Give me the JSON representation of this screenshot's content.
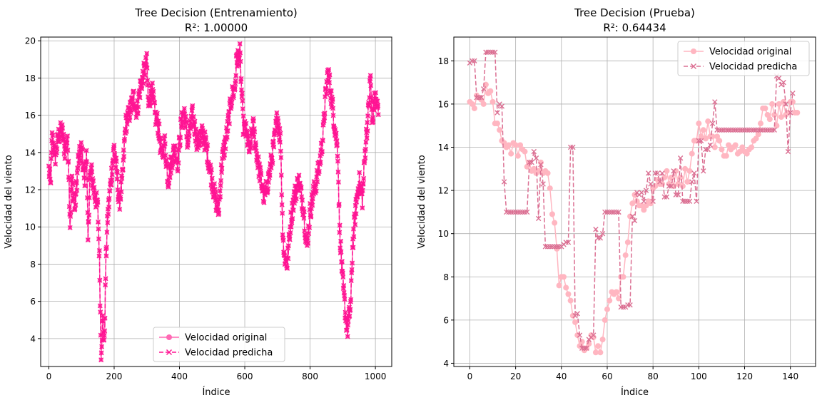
{
  "chart_data": [
    {
      "type": "line",
      "title": "Tree Decision (Entrenamiento)",
      "subtitle": "R²: 1.00000",
      "xlabel": "Índice",
      "ylabel": "Velocidad del viento",
      "xlim": [
        -25,
        1050
      ],
      "ylim": [
        2.5,
        20.2
      ],
      "xticks": [
        0,
        200,
        400,
        600,
        800,
        1000
      ],
      "yticks": [
        4,
        6,
        8,
        10,
        12,
        14,
        16,
        18,
        20
      ],
      "grid": true,
      "legend_position": "lower-center",
      "n_points": 1010,
      "series": [
        {
          "name": "Velocidad original",
          "color": "#ff69b4",
          "marker": "circle",
          "linestyle": "solid"
        },
        {
          "name": "Velocidad predicha",
          "color": "#ff1493",
          "marker": "x",
          "linestyle": "dashed"
        }
      ],
      "keypoints": [
        [
          0,
          13.1
        ],
        [
          5,
          12.2
        ],
        [
          10,
          14.8
        ],
        [
          20,
          13.8
        ],
        [
          30,
          14.9
        ],
        [
          40,
          15.2
        ],
        [
          50,
          14.0
        ],
        [
          55,
          14.8
        ],
        [
          60,
          13.8
        ],
        [
          65,
          10.2
        ],
        [
          70,
          12.5
        ],
        [
          80,
          11.0
        ],
        [
          90,
          13.5
        ],
        [
          100,
          14.2
        ],
        [
          110,
          12.5
        ],
        [
          115,
          14.3
        ],
        [
          120,
          9.2
        ],
        [
          125,
          12.5
        ],
        [
          130,
          13.0
        ],
        [
          140,
          11.8
        ],
        [
          150,
          11.0
        ],
        [
          155,
          8.3
        ],
        [
          160,
          3.3
        ],
        [
          165,
          5.0
        ],
        [
          170,
          3.7
        ],
        [
          175,
          8.3
        ],
        [
          180,
          10.5
        ],
        [
          190,
          12.5
        ],
        [
          200,
          14.3
        ],
        [
          210,
          12.5
        ],
        [
          215,
          11.2
        ],
        [
          225,
          12.5
        ],
        [
          235,
          15.5
        ],
        [
          245,
          16.0
        ],
        [
          260,
          17.0
        ],
        [
          270,
          16.2
        ],
        [
          280,
          17.5
        ],
        [
          290,
          18.2
        ],
        [
          300,
          18.8
        ],
        [
          305,
          16.5
        ],
        [
          315,
          17.5
        ],
        [
          325,
          16.0
        ],
        [
          335,
          15.5
        ],
        [
          345,
          13.8
        ],
        [
          355,
          14.5
        ],
        [
          365,
          12.5
        ],
        [
          375,
          13.5
        ],
        [
          385,
          14.2
        ],
        [
          395,
          13.5
        ],
        [
          405,
          15.5
        ],
        [
          415,
          16.2
        ],
        [
          425,
          14.5
        ],
        [
          440,
          16.0
        ],
        [
          455,
          14.5
        ],
        [
          470,
          15.0
        ],
        [
          480,
          14.5
        ],
        [
          490,
          13.5
        ],
        [
          500,
          12.5
        ],
        [
          510,
          11.5
        ],
        [
          520,
          10.8
        ],
        [
          530,
          13.5
        ],
        [
          545,
          15.0
        ],
        [
          560,
          17.0
        ],
        [
          570,
          17.5
        ],
        [
          575,
          19.0
        ],
        [
          585,
          19.3
        ],
        [
          595,
          15.5
        ],
        [
          605,
          15.0
        ],
        [
          615,
          14.0
        ],
        [
          625,
          15.5
        ],
        [
          640,
          13.5
        ],
        [
          650,
          12.5
        ],
        [
          660,
          11.5
        ],
        [
          675,
          12.8
        ],
        [
          690,
          14.5
        ],
        [
          700,
          16.0
        ],
        [
          710,
          14.5
        ],
        [
          715,
          10.5
        ],
        [
          720,
          8.5
        ],
        [
          730,
          8.0
        ],
        [
          740,
          10.2
        ],
        [
          750,
          11.5
        ],
        [
          765,
          12.5
        ],
        [
          780,
          11.0
        ],
        [
          790,
          8.8
        ],
        [
          800,
          10.8
        ],
        [
          810,
          11.8
        ],
        [
          820,
          12.5
        ],
        [
          830,
          13.5
        ],
        [
          840,
          15.0
        ],
        [
          845,
          16.5
        ],
        [
          855,
          18.4
        ],
        [
          865,
          17.0
        ],
        [
          875,
          15.5
        ],
        [
          885,
          14.0
        ],
        [
          890,
          10.0
        ],
        [
          895,
          8.5
        ],
        [
          900,
          7.0
        ],
        [
          910,
          5.0
        ],
        [
          915,
          4.5
        ],
        [
          925,
          6.0
        ],
        [
          930,
          9.0
        ],
        [
          940,
          11.0
        ],
        [
          950,
          12.5
        ],
        [
          960,
          11.5
        ],
        [
          970,
          14.5
        ],
        [
          980,
          16.5
        ],
        [
          985,
          18.1
        ],
        [
          990,
          15.5
        ],
        [
          995,
          16.5
        ],
        [
          1000,
          17.0
        ],
        [
          1010,
          16.0
        ]
      ]
    },
    {
      "type": "line",
      "title": "Tree Decision (Prueba)",
      "subtitle": "R²: 0.64434",
      "xlabel": "Índice",
      "ylabel": "Velocidad del viento",
      "xlim": [
        -7,
        151
      ],
      "ylim": [
        3.85,
        19.1
      ],
      "xticks": [
        0,
        20,
        40,
        60,
        80,
        100,
        120,
        140
      ],
      "yticks": [
        4,
        6,
        8,
        10,
        12,
        14,
        16,
        18
      ],
      "grid": true,
      "legend_position": "upper-right",
      "series": [
        {
          "name": "Velocidad original",
          "color": "#ffb6c1",
          "marker": "circle",
          "linestyle": "solid",
          "values": [
            16.1,
            16.0,
            15.8,
            16.4,
            16.3,
            16.2,
            16.0,
            16.9,
            16.5,
            16.6,
            16.1,
            15.1,
            15.1,
            14.8,
            14.3,
            14.2,
            14.0,
            14.1,
            13.7,
            14.2,
            14.1,
            13.6,
            14.1,
            13.9,
            13.8,
            13.1,
            13.3,
            12.9,
            13.0,
            12.8,
            12.9,
            13.3,
            12.8,
            12.9,
            12.8,
            12.1,
            10.9,
            10.5,
            9.3,
            7.6,
            8.0,
            8.0,
            7.5,
            7.2,
            6.9,
            6.2,
            5.9,
            5.3,
            4.8,
            5.0,
            4.6,
            4.7,
            4.9,
            5.3,
            5.2,
            4.5,
            4.8,
            4.5,
            5.1,
            6.0,
            6.5,
            6.9,
            7.3,
            7.2,
            7.3,
            7.0,
            8.0,
            8.0,
            9.0,
            9.6,
            10.8,
            11.4,
            11.8,
            11.5,
            11.3,
            11.3,
            11.1,
            11.3,
            11.5,
            11.4,
            12.1,
            12.2,
            12.5,
            12.3,
            12.3,
            12.6,
            12.9,
            12.3,
            12.6,
            12.2,
            12.9,
            12.3,
            12.6,
            12.2,
            13.0,
            12.4,
            12.9,
            13.7,
            14.3,
            14.3,
            15.1,
            14.5,
            14.8,
            14.4,
            15.2,
            14.5,
            14.5,
            14.0,
            14.5,
            14.3,
            13.9,
            13.6,
            13.6,
            14.1,
            13.9,
            14.0,
            14.1,
            13.7,
            13.8,
            14.0,
            13.8,
            13.7,
            13.9,
            14.0,
            14.3,
            14.4,
            14.6,
            15.1,
            15.8,
            15.8,
            15.5,
            15.3,
            16.0,
            15.5,
            15.0,
            16.0,
            15.4,
            16.1,
            15.5,
            15.6,
            16.1,
            16.1,
            15.6,
            15.6
          ]
        },
        {
          "name": "Velocidad predicha",
          "color": "#db7093",
          "marker": "x",
          "linestyle": "dashed",
          "values": [
            17.9,
            18.0,
            18.0,
            16.3,
            16.3,
            16.3,
            16.7,
            18.4,
            18.4,
            18.4,
            18.4,
            18.4,
            15.6,
            16.0,
            15.9,
            12.4,
            11.0,
            11.0,
            11.0,
            11.0,
            11.0,
            11.0,
            11.0,
            11.0,
            11.0,
            11.0,
            13.3,
            13.3,
            13.8,
            13.5,
            10.7,
            13.2,
            12.3,
            9.4,
            9.4,
            9.4,
            9.4,
            9.4,
            9.4,
            9.4,
            9.4,
            9.5,
            9.6,
            9.6,
            14.0,
            14.0,
            6.2,
            6.3,
            5.3,
            4.7,
            4.7,
            4.7,
            5.1,
            5.2,
            5.3,
            10.2,
            9.8,
            9.8,
            10.0,
            11.0,
            11.0,
            11.0,
            11.0,
            11.0,
            11.0,
            11.0,
            6.6,
            6.6,
            6.6,
            6.7,
            6.7,
            10.8,
            10.6,
            11.9,
            11.8,
            11.9,
            11.5,
            12.0,
            12.8,
            12.3,
            11.5,
            12.8,
            12.8,
            12.4,
            12.8,
            11.7,
            11.7,
            12.2,
            12.2,
            12.9,
            11.8,
            11.8,
            13.5,
            11.5,
            11.5,
            11.5,
            11.5,
            12.4,
            12.8,
            11.5,
            14.3,
            14.3,
            12.9,
            13.9,
            13.9,
            14.1,
            15.1,
            16.1,
            14.8,
            14.8,
            14.8,
            14.8,
            14.8,
            14.8,
            14.8,
            14.8,
            14.8,
            14.8,
            14.8,
            14.8,
            14.8,
            14.8,
            14.8,
            14.8,
            14.8,
            14.8,
            14.8,
            14.8,
            14.8,
            14.8,
            14.8,
            14.8,
            14.8,
            14.8,
            17.3,
            17.2,
            16.9,
            17.0,
            16.0,
            13.8,
            15.6,
            16.5
          ]
        }
      ]
    }
  ]
}
